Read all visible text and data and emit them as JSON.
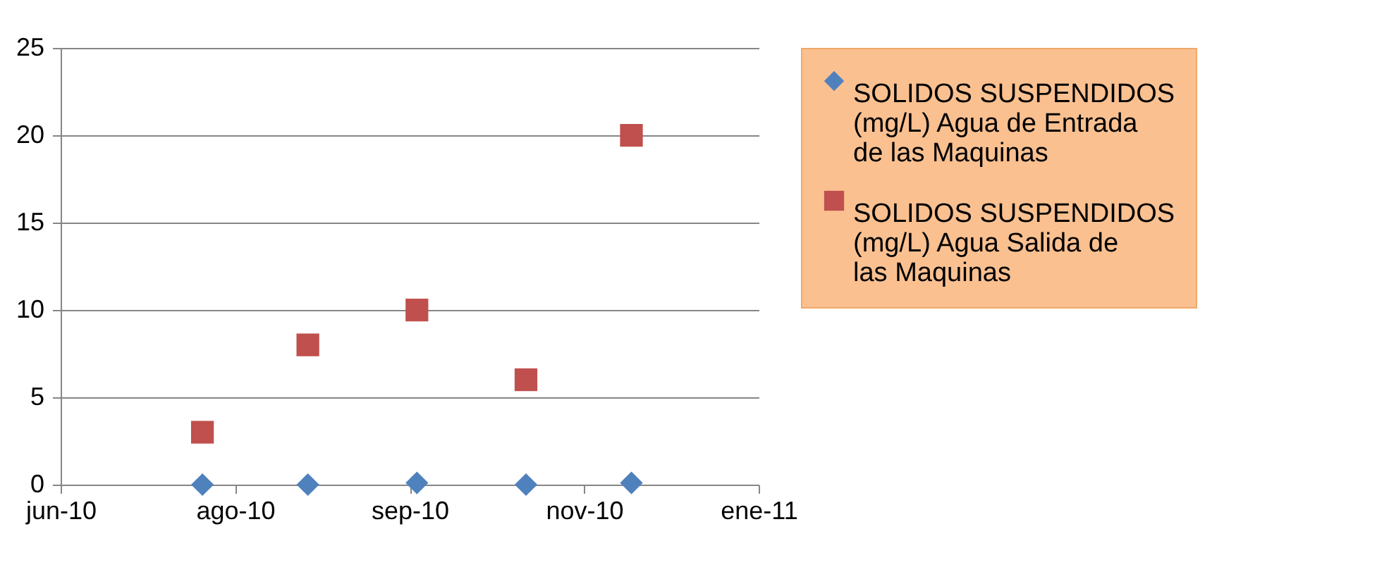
{
  "chart_data": {
    "type": "scatter",
    "xlim": [
      "2010-06-25",
      "2011-01-03"
    ],
    "xticks": [
      {
        "value": "2010-06-25",
        "label": "jun-10"
      },
      {
        "value": "2010-08-12",
        "label": "ago-10"
      },
      {
        "value": "2010-09-29",
        "label": "sep-10"
      },
      {
        "value": "2010-11-16",
        "label": "nov-10"
      },
      {
        "value": "2011-01-03",
        "label": "ene-11"
      }
    ],
    "ylim": [
      0,
      25
    ],
    "yticks": [
      0,
      5,
      10,
      15,
      20,
      25
    ],
    "grid": "y",
    "legend": "right",
    "series": [
      {
        "name": "SOLIDOS SUSPENDIDOS (mg/L) Agua de Entrada de las Maquinas",
        "color": "#4f81bd",
        "marker": "diamond",
        "x": [
          "2010-08-03",
          "2010-09-01",
          "2010-10-01",
          "2010-10-31",
          "2010-11-29"
        ],
        "values": [
          0,
          0,
          0.1,
          0,
          0.1
        ]
      },
      {
        "name": "SOLIDOS SUSPENDIDOS (mg/L) Agua Salida de las Maquinas",
        "color": "#c0504d",
        "marker": "square",
        "x": [
          "2010-08-03",
          "2010-09-01",
          "2010-10-01",
          "2010-10-31",
          "2010-11-29"
        ],
        "values": [
          3,
          8,
          10,
          6,
          20
        ]
      }
    ]
  }
}
